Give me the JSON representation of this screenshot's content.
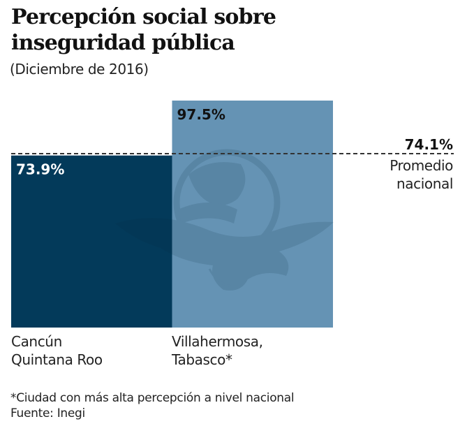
{
  "header": {
    "title_line1": "Percepción social sobre",
    "title_line2": "inseguridad pública",
    "subtitle": "(Diciembre de 2016)"
  },
  "chart_data": {
    "type": "bar",
    "title": "Percepción social sobre inseguridad pública",
    "subtitle": "(Diciembre de 2016)",
    "categories": [
      "Cancún Quintana Roo",
      "Villahermosa, Tabasco*"
    ],
    "category_lines": [
      [
        "Cancún",
        "Quintana Roo"
      ],
      [
        "Villahermosa,",
        "Tabasco*"
      ]
    ],
    "values": [
      73.9,
      97.5
    ],
    "value_labels": [
      "73.9%",
      "97.5%"
    ],
    "colors": [
      "#033a5a",
      "#6593b4"
    ],
    "label_colors": [
      "#ffffff",
      "#111111"
    ],
    "reference_line": {
      "value": 74.1,
      "value_label": "74.1%",
      "label_line1": "Promedio",
      "label_line2": "nacional",
      "style": "dashed"
    },
    "ylim": [
      0,
      97.5
    ],
    "xlabel": "",
    "ylabel": "",
    "grid": false,
    "unit": "%"
  },
  "footer": {
    "note": "*Ciudad con más alta percepción a nivel nacional",
    "source": "Fuente: Inegi"
  },
  "watermark": {
    "icon": "eagle-globe-emblem-icon"
  }
}
